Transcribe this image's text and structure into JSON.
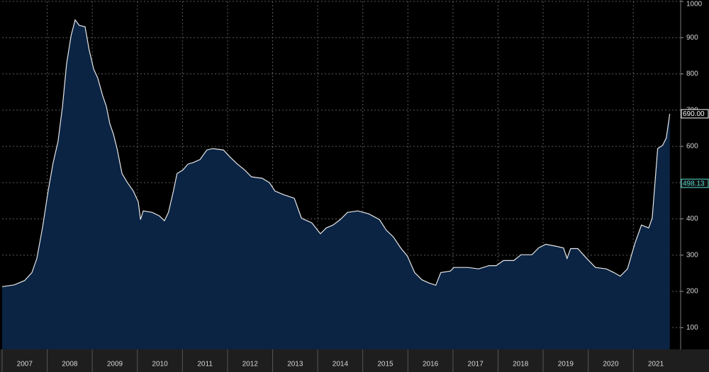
{
  "chart_data": {
    "type": "area",
    "x": [
      2007.0,
      2007.27,
      2007.5,
      2007.66,
      2007.77,
      2007.9,
      2008.02,
      2008.13,
      2008.24,
      2008.34,
      2008.43,
      2008.53,
      2008.62,
      2008.71,
      2008.84,
      2008.93,
      2009.03,
      2009.12,
      2009.23,
      2009.31,
      2009.39,
      2009.47,
      2009.55,
      2009.66,
      2009.78,
      2009.91,
      2010.02,
      2010.07,
      2010.13,
      2010.33,
      2010.49,
      2010.6,
      2010.69,
      2010.8,
      2010.88,
      2011.01,
      2011.12,
      2011.23,
      2011.39,
      2011.54,
      2011.67,
      2011.91,
      2012.06,
      2012.22,
      2012.38,
      2012.53,
      2012.77,
      2012.93,
      2013.05,
      2013.24,
      2013.48,
      2013.64,
      2013.87,
      2014.06,
      2014.19,
      2014.34,
      2014.5,
      2014.66,
      2014.89,
      2015.13,
      2015.37,
      2015.52,
      2015.68,
      2015.84,
      2015.99,
      2016.15,
      2016.31,
      2016.47,
      2016.62,
      2016.73,
      2016.94,
      2017.02,
      2017.33,
      2017.57,
      2017.8,
      2017.96,
      2018.12,
      2018.35,
      2018.51,
      2018.75,
      2018.9,
      2019.06,
      2019.3,
      2019.45,
      2019.53,
      2019.61,
      2019.77,
      2019.92,
      2020.16,
      2020.4,
      2020.57,
      2020.71,
      2020.87,
      2021.03,
      2021.18,
      2021.34,
      2021.42,
      2021.54,
      2021.65,
      2021.73,
      2021.81
    ],
    "series": [
      {
        "color": "#e6e6e6",
        "fill": "#0b2444",
        "values": [
          213,
          218,
          230,
          252,
          291,
          379,
          477,
          555,
          613,
          711,
          828,
          906,
          949,
          934,
          930,
          867,
          813,
          789,
          740,
          711,
          662,
          633,
          594,
          525,
          500,
          477,
          447,
          398,
          422,
          418,
          408,
          395,
          418,
          477,
          525,
          535,
          551,
          555,
          564,
          590,
          594,
          590,
          570,
          551,
          535,
          516,
          512,
          500,
          477,
          467,
          457,
          402,
          389,
          359,
          375,
          383,
          398,
          418,
          422,
          414,
          398,
          369,
          350,
          320,
          297,
          252,
          232,
          223,
          217,
          252,
          256,
          266,
          266,
          262,
          271,
          271,
          285,
          285,
          301,
          301,
          320,
          330,
          324,
          320,
          291,
          318,
          318,
          297,
          266,
          262,
          252,
          242,
          262,
          330,
          383,
          375,
          402,
          594,
          603,
          623,
          690
        ]
      }
    ],
    "annotations": [
      {
        "value": 690,
        "label": "690.00",
        "color": "#ffffff"
      },
      {
        "value": 498.13,
        "color": "#4fd6c9"
      }
    ],
    "xlim": [
      2007,
      2022.05
    ],
    "xticks": [
      2007,
      2008,
      2009,
      2010,
      2011,
      2012,
      2013,
      2014,
      2015,
      2016,
      2017,
      2018,
      2019,
      2020,
      2021
    ],
    "ylim": [
      40,
      1000
    ],
    "yticks": [
      100,
      200,
      300,
      400,
      500,
      600,
      700,
      800,
      900,
      1000
    ],
    "grid": true
  }
}
